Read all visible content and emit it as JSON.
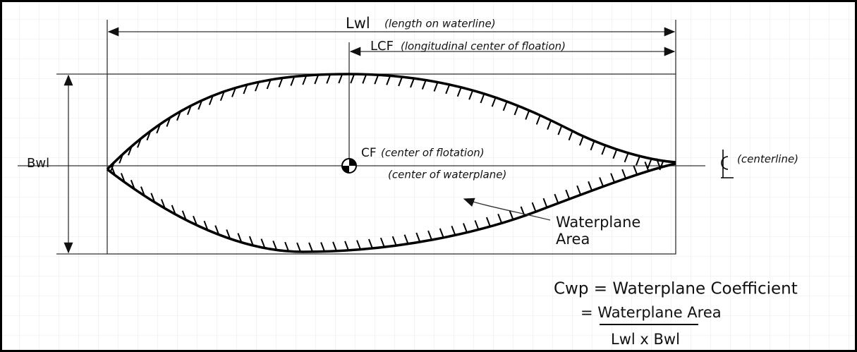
{
  "dimensions": {
    "lwl": {
      "symbol": "Lwl",
      "label": "(length on waterline)"
    },
    "lcf": {
      "symbol": "LCF",
      "label": "(longitudinal center of floation)"
    },
    "bwl": {
      "symbol": "Bwl"
    }
  },
  "center": {
    "symbol": "CF",
    "label": "(center of flotation)",
    "alt_label": "(center of waterplane)"
  },
  "centerline": {
    "label": "(centerline)"
  },
  "area": {
    "label": [
      "Waterplane",
      "Area"
    ]
  },
  "formula": {
    "line1": "Cwp = Waterplane Coefficient",
    "numerator": "= Waterplane Area",
    "denominator": "Lwl x Bwl"
  }
}
